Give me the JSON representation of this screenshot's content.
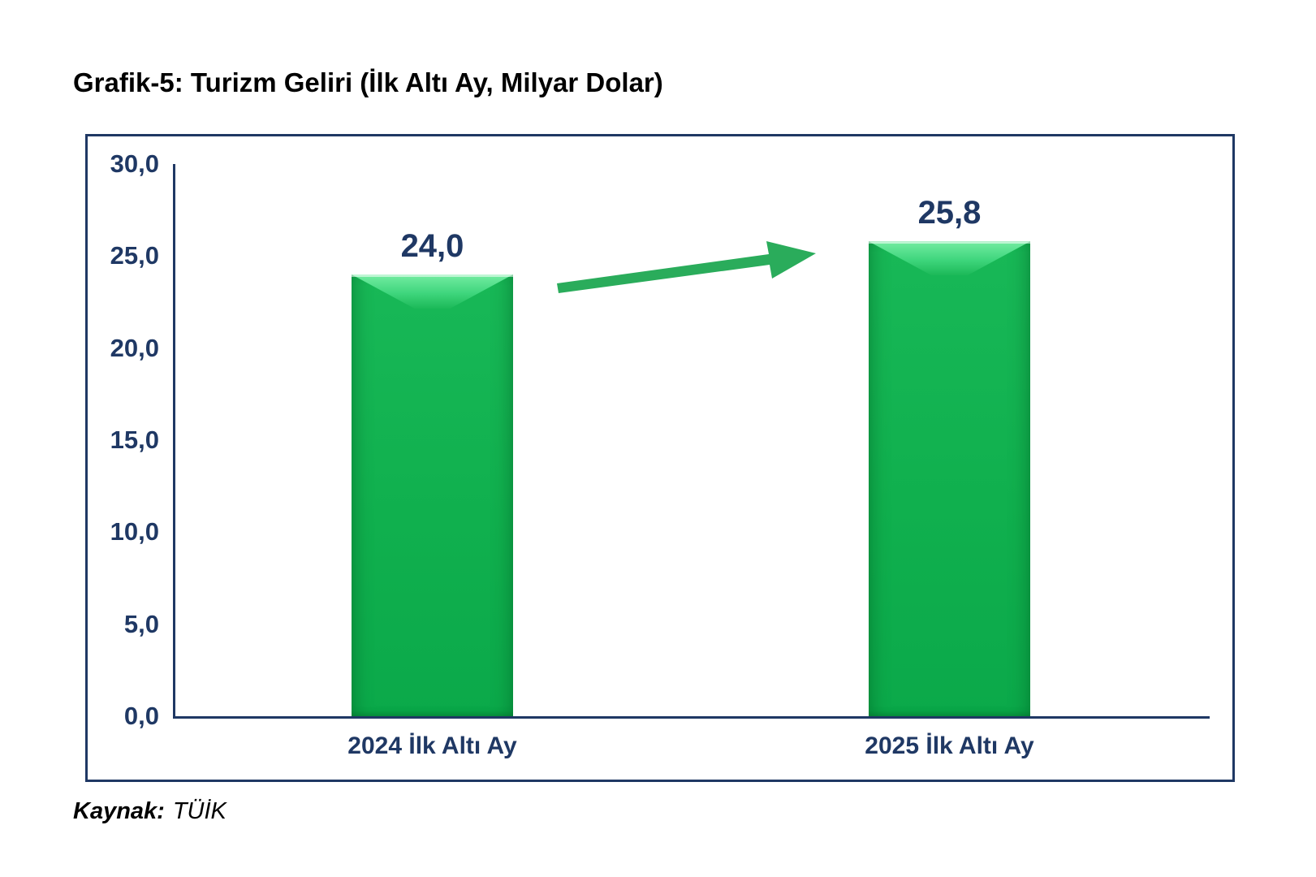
{
  "title": "Grafik-5: Turizm Geliri (İlk Altı Ay, Milyar Dolar)",
  "source": {
    "label": "Kaynak:",
    "value": "TÜİK"
  },
  "colors": {
    "navy_text": "#1f3864",
    "axis_line": "#1f3864",
    "chart_border": "#1f3864",
    "bar_green": "#10b04e",
    "bar_bevel_light": "#74eca2",
    "arrow_green": "#2aac5b",
    "title_black": "#000000",
    "background": "#ffffff"
  },
  "chart_data": {
    "type": "bar",
    "title": "Grafik-5: Turizm Geliri (İlk Altı Ay, Milyar Dolar)",
    "categories": [
      "2024 İlk Altı Ay",
      "2025 İlk Altı Ay"
    ],
    "values": [
      24.0,
      25.8
    ],
    "value_labels": [
      "24,0",
      "25,8"
    ],
    "xlabel": "",
    "ylabel": "",
    "ylim": [
      0,
      30
    ],
    "ytick_step": 5,
    "yticks": [
      {
        "value": 30,
        "label": "30,0"
      },
      {
        "value": 25,
        "label": "25,0"
      },
      {
        "value": 20,
        "label": "20,0"
      },
      {
        "value": 15,
        "label": "15,0"
      },
      {
        "value": 10,
        "label": "10,0"
      },
      {
        "value": 5,
        "label": "5,0"
      },
      {
        "value": 0,
        "label": "0,0"
      }
    ],
    "grid": false,
    "legend": "none",
    "annotations": [
      "green rising arrow from 2024 bar toward 2025 bar"
    ]
  }
}
